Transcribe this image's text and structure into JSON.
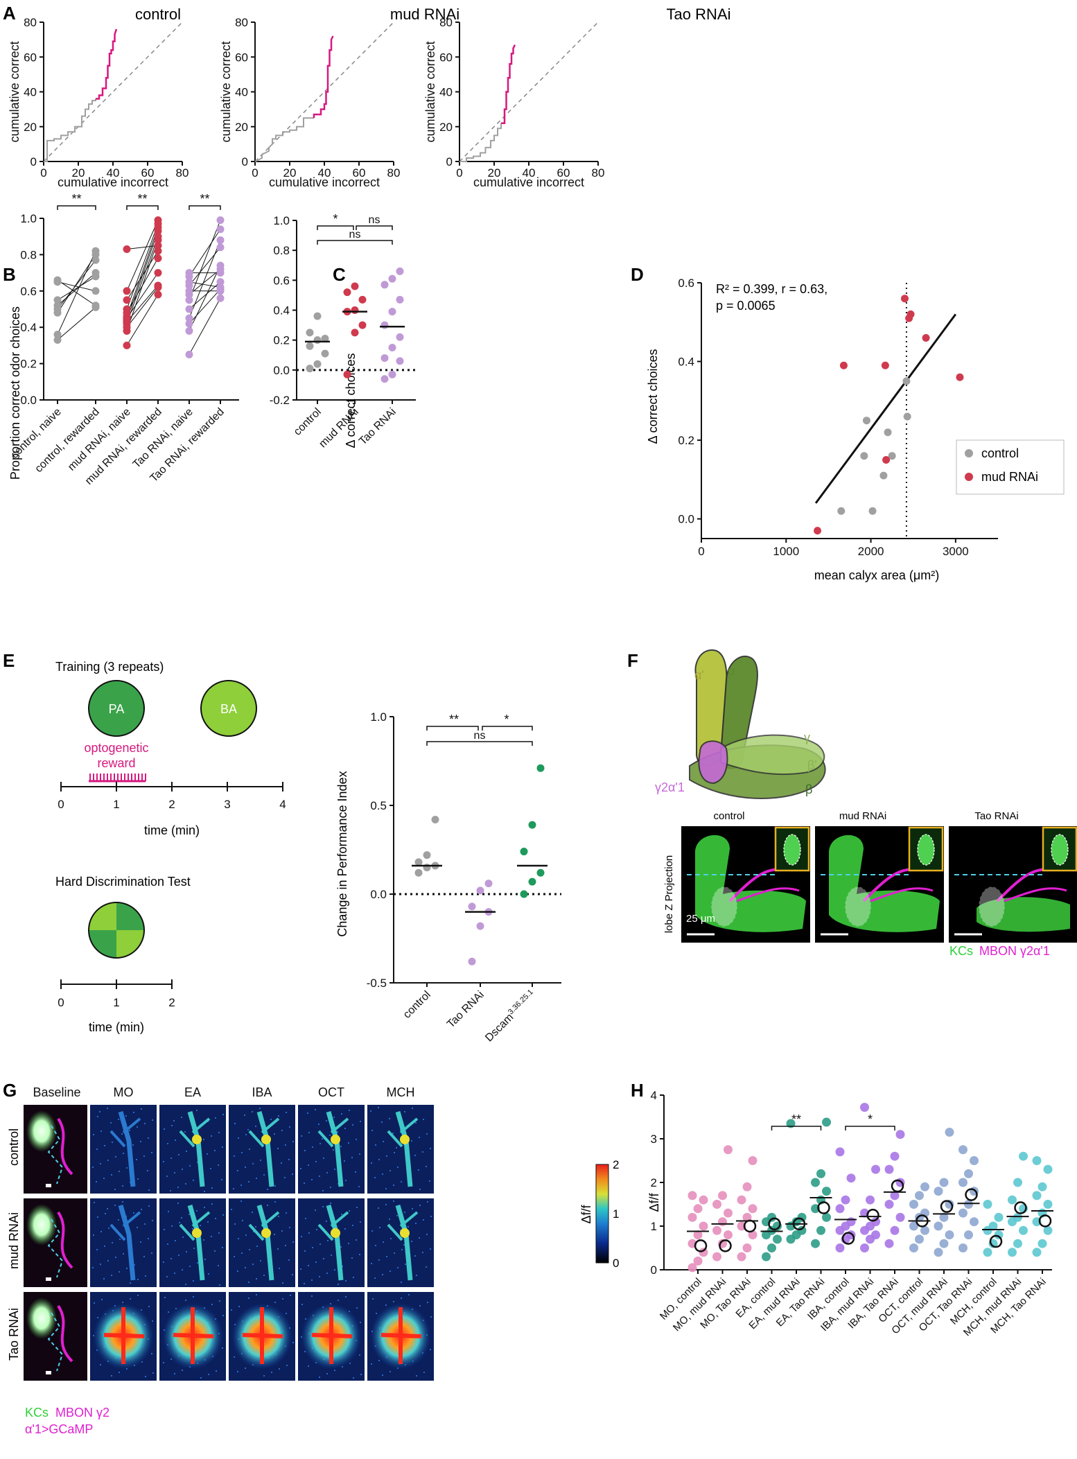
{
  "panel_letters": [
    "A",
    "B",
    "C",
    "D",
    "E",
    "F",
    "G",
    "H"
  ],
  "panel_a": {
    "titles": [
      "control",
      "mud RNAi",
      "Tao RNAi"
    ],
    "xlabel": "cumulative incorrect",
    "ylabel": "cumulative correct",
    "xticks": [
      "0",
      "20",
      "40",
      "60",
      "80"
    ],
    "yticks": [
      "0",
      "20",
      "40",
      "60",
      "80"
    ]
  },
  "panel_b": {
    "ylabel": "Proportion correct odor choices",
    "yticks": [
      "0.0",
      "0.2",
      "0.4",
      "0.6",
      "0.8",
      "1.0"
    ],
    "categories": [
      "control, naive",
      "control, rewarded",
      "mud RNAi, naive",
      "mud RNAi, rewarded",
      "Tao RNAi, naive",
      "Tao RNAi, rewarded"
    ],
    "sig": [
      "**",
      "**",
      "**"
    ]
  },
  "panel_c": {
    "ylabel": "Δ correct choices",
    "yticks": [
      "-0.2",
      "0.0",
      "0.2",
      "0.4",
      "0.6",
      "0.8",
      "1.0"
    ],
    "categories": [
      "control",
      "mud RNAi",
      "Tao RNAi"
    ],
    "sig": [
      "*",
      "ns",
      "ns"
    ]
  },
  "panel_d": {
    "ylabel": "Δ correct choices",
    "xlabel": "mean calyx area (μm²)",
    "xticks": [
      "0",
      "1000",
      "2000",
      "3000"
    ],
    "yticks": [
      "0.0",
      "0.2",
      "0.4",
      "0.6"
    ],
    "stats_line1": "R² = 0.399, r = 0.63,",
    "stats_line2": "p = 0.0065",
    "legend": [
      "control",
      "mud RNAi"
    ]
  },
  "panel_e": {
    "training_title": "Training (3 repeats)",
    "odor1": "PA",
    "odor2": "BA",
    "reward_label_1": "optogenetic",
    "reward_label_2": "reward",
    "time_label": "time (min)",
    "train_ticks": [
      "0",
      "1",
      "2",
      "3",
      "4"
    ],
    "test_title": "Hard Discrimination Test",
    "test_ticks": [
      "0",
      "1",
      "2"
    ],
    "ylabel": "Change in Performance Index",
    "yticks": [
      "-0.5",
      "0.0",
      "0.5",
      "1.0"
    ],
    "categories": [
      "control",
      "Tao RNAi",
      "Dscam"
    ],
    "dscam_sup": "3.36.25.1",
    "sig": [
      "**",
      "*",
      "ns"
    ]
  },
  "panel_f": {
    "lobe_labels": [
      "α'",
      "α",
      "γ",
      "β'",
      "β",
      "γ2α'1"
    ],
    "images": [
      "control",
      "mud RNAi",
      "Tao RNAi"
    ],
    "side_label": "lobe Z Projection",
    "scale": "25 μm",
    "legend_kc": "KCs",
    "legend_mbon": "MBON γ2α'1"
  },
  "panel_g": {
    "columns": [
      "Baseline",
      "MO",
      "EA",
      "IBA",
      "OCT",
      "MCH"
    ],
    "rows": [
      "control",
      "mud RNAi",
      "Tao RNAi"
    ],
    "colorbar_ticks": [
      "2",
      "1",
      "0"
    ],
    "colorbar_label": "Δf/f",
    "legend_kc": "KCs",
    "legend_mbon_1": "MBON γ2",
    "legend_mbon_2": "α'1>GCaMP"
  },
  "panel_h": {
    "ylabel": "Δf/f",
    "yticks": [
      "0",
      "1",
      "2",
      "3",
      "4"
    ],
    "categories": [
      "MO, control",
      "MO, mud RNAi",
      "MO, Tao RNAi",
      "EA, control",
      "EA, mud RNAi",
      "EA, Tao RNAi",
      "IBA, control",
      "IBA, mud RNAi",
      "IBA, Tao RNAi",
      "OCT, control",
      "OCT, mud RNAi",
      "OCT, Tao RNAi",
      "MCH, control",
      "MCH, mud RNAi",
      "MCH, Tao RNAi"
    ],
    "sig": [
      "**",
      "*"
    ]
  },
  "colors": {
    "magenta": "#d6187f",
    "grey": "#a0a0a0",
    "red": "#cf3a4e",
    "lilac": "#c09ad6",
    "green": "#1e9a5c",
    "pink": "#e58fbd",
    "teal": "#2c9c86",
    "purple": "#a975e6",
    "slate": "#8ea6d0",
    "cyan": "#5cc8d0"
  },
  "chart_data": [
    {
      "type": "line",
      "panel": "A",
      "subplots": [
        {
          "title": "control",
          "x": [
            0,
            2,
            2,
            6,
            6,
            10,
            10,
            14,
            14,
            18,
            18,
            22,
            22,
            24,
            24,
            26,
            26,
            28,
            28,
            30,
            30,
            32,
            32,
            34,
            34,
            36,
            36,
            37,
            37,
            38,
            38,
            39,
            39,
            40,
            40,
            41,
            41,
            42
          ],
          "y": [
            0,
            0,
            12,
            12,
            13,
            13,
            15,
            15,
            17,
            17,
            20,
            20,
            26,
            26,
            30,
            30,
            33,
            33,
            35,
            35,
            36,
            36,
            38,
            38,
            42,
            42,
            48,
            48,
            55,
            55,
            62,
            62,
            64,
            64,
            69,
            69,
            73,
            76
          ]
        },
        {
          "title": "mud RNAi",
          "x": [
            0,
            4,
            4,
            8,
            8,
            10,
            10,
            12,
            12,
            16,
            16,
            20,
            20,
            24,
            24,
            28,
            28,
            34,
            34,
            38,
            38,
            40,
            40,
            41,
            41,
            42,
            42,
            43,
            43,
            44,
            44,
            45
          ],
          "y": [
            0,
            2,
            4,
            6,
            8,
            10,
            13,
            13,
            15,
            15,
            17,
            17,
            18,
            18,
            20,
            20,
            25,
            25,
            27,
            27,
            30,
            30,
            33,
            33,
            40,
            40,
            55,
            55,
            64,
            64,
            70,
            72
          ]
        },
        {
          "title": "Tao RNAi",
          "x": [
            0,
            4,
            4,
            8,
            8,
            12,
            12,
            15,
            15,
            18,
            18,
            20,
            20,
            22,
            22,
            24,
            24,
            26,
            26,
            27,
            27,
            28,
            28,
            29,
            29,
            30,
            30,
            31,
            31,
            32
          ],
          "y": [
            0,
            0,
            2,
            2,
            3,
            3,
            5,
            5,
            8,
            8,
            12,
            12,
            15,
            15,
            19,
            19,
            22,
            22,
            30,
            30,
            40,
            40,
            48,
            48,
            56,
            56,
            62,
            62,
            65,
            67
          ]
        }
      ],
      "xlabel": "cumulative incorrect",
      "ylabel": "cumulative correct",
      "xlim": [
        0,
        80
      ],
      "ylim": [
        0,
        80
      ]
    },
    {
      "type": "scatter",
      "panel": "B",
      "groups": [
        {
          "name": "control",
          "naive": [
            0.33,
            0.36,
            0.48,
            0.5,
            0.52,
            0.55,
            0.65,
            0.66
          ],
          "rewarded": [
            0.51,
            0.52,
            0.6,
            0.68,
            0.7,
            0.77,
            0.8,
            0.82
          ]
        },
        {
          "name": "mud RNAi",
          "naive": [
            0.3,
            0.38,
            0.4,
            0.42,
            0.43,
            0.44,
            0.45,
            0.46,
            0.48,
            0.5,
            0.55,
            0.6,
            0.83
          ],
          "rewarded": [
            0.58,
            0.62,
            0.63,
            0.7,
            0.78,
            0.82,
            0.85,
            0.88,
            0.9,
            0.93,
            0.95,
            0.97,
            0.99
          ]
        },
        {
          "name": "Tao RNAi",
          "naive": [
            0.25,
            0.38,
            0.42,
            0.45,
            0.5,
            0.55,
            0.58,
            0.6,
            0.63,
            0.65,
            0.68,
            0.7
          ],
          "rewarded": [
            0.56,
            0.6,
            0.61,
            0.62,
            0.65,
            0.7,
            0.72,
            0.74,
            0.84,
            0.88,
            0.94,
            0.99
          ]
        }
      ],
      "ylim": [
        0,
        1.0
      ]
    },
    {
      "type": "scatter",
      "panel": "C",
      "categories": [
        "control",
        "mud RNAi",
        "Tao RNAi"
      ],
      "points": [
        [
          0.01,
          0.04,
          0.11,
          0.16,
          0.2,
          0.21,
          0.25,
          0.36
        ],
        [
          -0.03,
          0.25,
          0.3,
          0.39,
          0.4,
          0.47,
          0.52,
          0.56
        ],
        [
          -0.06,
          -0.03,
          0.06,
          0.08,
          0.15,
          0.22,
          0.3,
          0.39,
          0.47,
          0.57,
          0.61,
          0.66
        ]
      ],
      "means": [
        0.19,
        0.39,
        0.29
      ],
      "ylim": [
        -0.2,
        1.0
      ]
    },
    {
      "type": "scatter",
      "panel": "D",
      "series": [
        {
          "name": "control",
          "x": [
            1650,
            1920,
            1950,
            2020,
            2150,
            2200,
            2250,
            2420,
            2430
          ],
          "y": [
            0.02,
            0.16,
            0.25,
            0.02,
            0.11,
            0.22,
            0.16,
            0.35,
            0.26
          ]
        },
        {
          "name": "mud RNAi",
          "x": [
            1370,
            1680,
            2180,
            2170,
            2400,
            2450,
            2470,
            2650,
            3050
          ],
          "y": [
            -0.03,
            0.39,
            0.15,
            0.39,
            0.56,
            0.51,
            0.52,
            0.46,
            0.36
          ]
        }
      ],
      "fit": {
        "x": [
          1350,
          3000
        ],
        "y": [
          0.04,
          0.52
        ]
      },
      "vline": 2420,
      "xlim": [
        0,
        3500
      ],
      "ylim": [
        -0.05,
        0.6
      ]
    },
    {
      "type": "scatter",
      "panel": "E",
      "categories": [
        "control",
        "Tao RNAi",
        "Dscam"
      ],
      "points": [
        [
          0.12,
          0.15,
          0.16,
          0.18,
          0.22,
          0.42
        ],
        [
          -0.38,
          -0.18,
          -0.1,
          -0.07,
          0.02,
          0.06
        ],
        [
          0.0,
          0.07,
          0.12,
          0.24,
          0.39,
          0.71
        ]
      ],
      "means": [
        0.16,
        -0.1,
        0.16
      ],
      "ylim": [
        -0.5,
        1.0
      ]
    },
    {
      "type": "scatter",
      "panel": "H",
      "categories": [
        "MO, control",
        "MO, mud RNAi",
        "MO, Tao RNAi",
        "EA, control",
        "EA, mud RNAi",
        "EA, Tao RNAi",
        "IBA, control",
        "IBA, mud RNAi",
        "IBA, Tao RNAi",
        "OCT, control",
        "OCT, mud RNAi",
        "OCT, Tao RNAi",
        "MCH, control",
        "MCH, mud RNAi",
        "MCH, Tao RNAi"
      ],
      "means": [
        0.88,
        1.05,
        1.12,
        0.88,
        1.05,
        1.65,
        1.15,
        1.22,
        1.78,
        1.12,
        1.28,
        1.52,
        0.92,
        1.22,
        1.35
      ],
      "highlight": [
        0.55,
        0.55,
        1.0,
        1.05,
        1.05,
        1.42,
        0.72,
        1.25,
        1.92,
        1.12,
        1.45,
        1.72,
        0.65,
        1.42,
        1.12
      ],
      "points": [
        [
          0.05,
          0.2,
          0.4,
          0.6,
          0.8,
          1.0,
          1.2,
          1.4,
          1.6,
          1.7
        ],
        [
          0.3,
          0.6,
          0.8,
          0.9,
          1.1,
          1.3,
          1.5,
          1.7,
          2.75
        ],
        [
          0.3,
          0.5,
          0.8,
          1.0,
          1.2,
          1.4,
          1.6,
          1.9,
          2.5
        ],
        [
          0.3,
          0.5,
          0.7,
          0.8,
          0.9,
          1.0,
          1.1,
          1.2
        ],
        [
          0.7,
          0.8,
          0.9,
          1.0,
          1.1,
          1.2,
          3.35
        ],
        [
          0.6,
          0.9,
          1.2,
          1.4,
          1.6,
          1.8,
          2.0,
          2.2,
          3.38
        ],
        [
          0.5,
          0.7,
          0.8,
          0.9,
          1.0,
          1.1,
          1.4,
          1.6,
          2.1,
          2.7
        ],
        [
          0.5,
          0.7,
          0.8,
          0.9,
          1.0,
          1.1,
          1.3,
          1.6,
          2.3,
          3.72
        ],
        [
          0.6,
          0.9,
          1.2,
          1.5,
          1.7,
          2.0,
          2.3,
          2.6,
          3.1
        ],
        [
          0.5,
          0.7,
          0.9,
          1.0,
          1.2,
          1.3,
          1.5,
          1.7,
          1.9
        ],
        [
          0.4,
          0.6,
          0.8,
          1.0,
          1.2,
          1.5,
          1.8,
          2.0,
          3.15
        ],
        [
          0.5,
          0.8,
          1.1,
          1.3,
          1.5,
          1.8,
          2.0,
          2.2,
          2.5,
          2.75
        ],
        [
          0.4,
          0.6,
          0.8,
          0.9,
          1.0,
          1.2,
          1.5
        ],
        [
          0.4,
          0.6,
          0.9,
          1.1,
          1.2,
          1.4,
          1.6,
          2.0,
          2.6
        ],
        [
          0.4,
          0.6,
          0.9,
          1.1,
          1.3,
          1.5,
          1.7,
          1.9,
          2.3,
          2.5
        ]
      ],
      "ylim": [
        0,
        4
      ]
    }
  ]
}
